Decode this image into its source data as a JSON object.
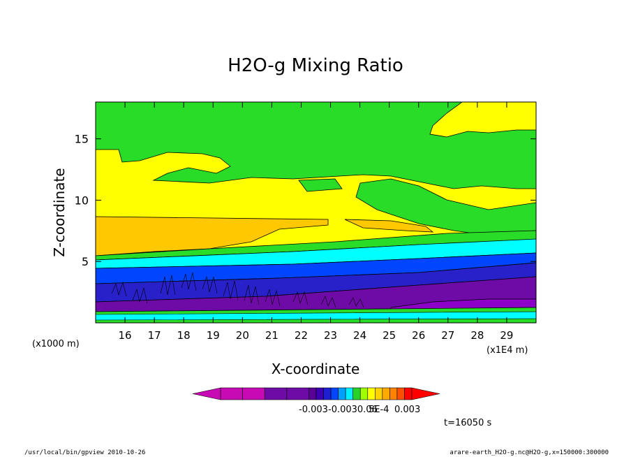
{
  "chart_data": {
    "type": "heatmap",
    "title": "H2O-g Mixing Ratio",
    "xlabel": "X-coordinate",
    "ylabel": "Z-coordinate",
    "x_unit": "(x1E4 m)",
    "y_unit": "(x1000 m)",
    "xlim": [
      15,
      30
    ],
    "ylim": [
      0,
      18
    ],
    "x_ticks": [
      16,
      17,
      18,
      19,
      20,
      21,
      22,
      23,
      24,
      25,
      26,
      27,
      28,
      29
    ],
    "y_ticks": [
      5,
      10,
      15
    ],
    "colorbar_labels": [
      "-0.003",
      "-0.0030.06",
      "5E-4",
      "0.003"
    ],
    "colorbar_colors": [
      "#c80ab4",
      "#c80ab4",
      "#6e0aa6",
      "#6e0aa6",
      "#5a0096",
      "#3c00b4",
      "#1e1ed2",
      "#0046ff",
      "#00a0ff",
      "#00f0ff",
      "#28d228",
      "#a0ff00",
      "#ffff00",
      "#ffd200",
      "#ffaa00",
      "#ff8200",
      "#ff5000",
      "#ff0000"
    ],
    "layers": [
      {
        "name": "band-purple-dark",
        "z": [
          0.2,
          1.2
        ],
        "color": "#8c00c8"
      },
      {
        "name": "band-purple",
        "z": [
          1.2,
          3.2
        ],
        "color": "#6e0aa6"
      },
      {
        "name": "band-blue-dark",
        "z": [
          2.5,
          4.5
        ],
        "color": "#2820c8"
      },
      {
        "name": "band-blue",
        "z": [
          4.2,
          5.5
        ],
        "color": "#0046ff"
      },
      {
        "name": "band-cyan",
        "z": [
          5.2,
          6.4
        ],
        "color": "#00ffff"
      },
      {
        "name": "band-green",
        "z": [
          5.5,
          7
        ],
        "color": "#28dc28"
      },
      {
        "name": "band-yellow-low",
        "z": [
          5.5,
          8.5
        ],
        "color": "#ffff00"
      },
      {
        "name": "band-orange",
        "z": [
          5.5,
          8.6
        ],
        "color": "#ffc800"
      },
      {
        "name": "band-yellow-mid",
        "z": [
          8.5,
          12
        ],
        "color": "#ffff00"
      },
      {
        "name": "band-green-top",
        "z": [
          12,
          18
        ],
        "color": "#28dc28"
      }
    ]
  },
  "annotations": {
    "time": "t=16050 s",
    "footer_left": "/usr/local/bin/gpview  2010-10-26",
    "footer_right": "arare-earth_H2O-g.nc@H2O-g,x=150000:300000"
  },
  "colors": {
    "green": "#28dc28",
    "yellow": "#ffff00",
    "orange": "#ffc800",
    "cyan": "#00ffff",
    "blue": "#0046ff",
    "deep_blue": "#2820c8",
    "purple": "#6e0aa6",
    "magenta": "#c80ab4",
    "red": "#ff0000"
  }
}
